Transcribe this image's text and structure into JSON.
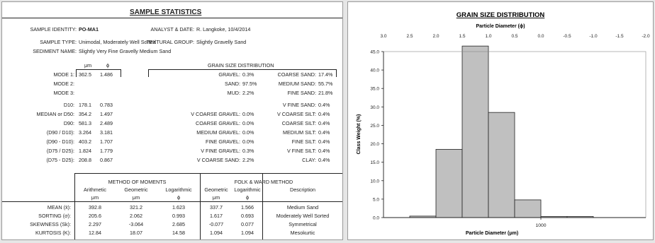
{
  "stats": {
    "title": "SAMPLE STATISTICS",
    "header": {
      "identity_label": "SAMPLE IDENTITY:",
      "identity_value": "PO-MA1",
      "analyst_label": "ANALYST & DATE:",
      "analyst_value": "R. Langkoke, 10/4/2014",
      "type_label": "SAMPLE TYPE:",
      "type_value": "Unimodal, Moderately Well Sorted",
      "group_label": "TEXTURAL GROUP:",
      "group_value": "Slightly Gravelly Sand",
      "name_label": "SEDIMENT NAME:",
      "name_value": "Slightly Very Fine Gravelly Medium Sand"
    },
    "unit_um": "μm",
    "unit_phi": "ϕ",
    "left_rows": [
      {
        "label": "MODE 1:",
        "um": "362.5",
        "phi": "1.486"
      },
      {
        "label": "MODE 2:",
        "um": "",
        "phi": ""
      },
      {
        "label": "MODE 3:",
        "um": "",
        "phi": ""
      },
      {
        "label": "D10:",
        "um": "178.1",
        "phi": "0.783"
      },
      {
        "label": "MEDIAN or D50:",
        "um": "354.2",
        "phi": "1.497"
      },
      {
        "label": "D90:",
        "um": "581.3",
        "phi": "2.489"
      },
      {
        "label": "(D90 / D10):",
        "um": "3.264",
        "phi": "3.181"
      },
      {
        "label": "(D90 - D10):",
        "um": "403.2",
        "phi": "1.707"
      },
      {
        "label": "(D75 / D25):",
        "um": "1.824",
        "phi": "1.779"
      },
      {
        "label": "(D75 - D25):",
        "um": "208.8",
        "phi": "0.867"
      }
    ],
    "distribution_title": "GRAIN SIZE DISTRIBUTION",
    "dist_rows": [
      {
        "a_label": "GRAVEL:",
        "a_value": "0.3%",
        "b_label": "COARSE SAND:",
        "b_value": "17.4%"
      },
      {
        "a_label": "SAND:",
        "a_value": "97.5%",
        "b_label": "MEDIUM SAND:",
        "b_value": "55.7%"
      },
      {
        "a_label": "MUD:",
        "a_value": "2.2%",
        "b_label": "FINE SAND:",
        "b_value": "21.8%"
      },
      {
        "a_label": "",
        "a_value": "",
        "b_label": "V FINE SAND:",
        "b_value": "0.4%"
      },
      {
        "a_label": "V COARSE GRAVEL:",
        "a_value": "0.0%",
        "b_label": "V COARSE SILT:",
        "b_value": "0.4%"
      },
      {
        "a_label": "COARSE GRAVEL:",
        "a_value": "0.0%",
        "b_label": "COARSE SILT:",
        "b_value": "0.4%"
      },
      {
        "a_label": "MEDIUM GRAVEL:",
        "a_value": "0.0%",
        "b_label": "MEDIUM SILT:",
        "b_value": "0.4%"
      },
      {
        "a_label": "FINE GRAVEL:",
        "a_value": "0.0%",
        "b_label": "FINE SILT:",
        "b_value": "0.4%"
      },
      {
        "a_label": "V FINE GRAVEL:",
        "a_value": "0.3%",
        "b_label": "V FINE SILT:",
        "b_value": "0.4%"
      },
      {
        "a_label": "V COARSE SAND:",
        "a_value": "2.2%",
        "b_label": "CLAY:",
        "b_value": "0.4%"
      }
    ],
    "moments": {
      "title": "METHOD OF MOMENTS",
      "folk_title": "FOLK & WARD METHOD",
      "col_headers": [
        "Arithmetic",
        "Geometric",
        "Logarithmic",
        "Geometric",
        "Logarithmic",
        "Description"
      ],
      "col_units": [
        "μm",
        "μm",
        "ϕ",
        "μm",
        "ϕ",
        ""
      ],
      "rows": [
        {
          "label": "MEAN (x̄):",
          "values": [
            "392.8",
            "321.2",
            "1.623",
            "337.7",
            "1.566",
            "Medium Sand"
          ]
        },
        {
          "label": "SORTING (σ):",
          "values": [
            "205.6",
            "2.062",
            "0.993",
            "1.617",
            "0.693",
            "Moderately Well Sorted"
          ]
        },
        {
          "label": "SKEWNESS (Sk):",
          "values": [
            "2.297",
            "-3.064",
            "2.685",
            "-0.077",
            "0.077",
            "Symmetrical"
          ]
        },
        {
          "label": "KURTOSIS (K):",
          "values": [
            "12.84",
            "18.07",
            "14.58",
            "1.094",
            "1.094",
            "Mesokurtic"
          ]
        }
      ]
    }
  },
  "chart_data": {
    "type": "bar",
    "title": "GRAIN SIZE DISTRIBUTION",
    "top_axis_label": "Particle Diameter (ϕ)",
    "top_ticks": [
      "3.0",
      "2.5",
      "2.0",
      "1.5",
      "1.0",
      "0.5",
      "0.0",
      "-0.5",
      "-1.0",
      "-1.5",
      "-2.0"
    ],
    "xlabel": "Particle Diameter (μm)",
    "bottom_ticks": [
      "1000"
    ],
    "ylabel": "Class Weight (%)",
    "ylim": [
      0,
      45
    ],
    "y_ticks": [
      "0.0",
      "5.0",
      "10.0",
      "15.0",
      "20.0",
      "25.0",
      "30.0",
      "35.0",
      "40.0",
      "45.0"
    ],
    "bins_phi": [
      [
        2.5,
        2.0
      ],
      [
        2.0,
        1.5
      ],
      [
        1.5,
        1.0
      ],
      [
        1.0,
        0.5
      ],
      [
        0.5,
        0.0
      ],
      [
        0.0,
        -0.5
      ],
      [
        -0.5,
        -1.0
      ]
    ],
    "values": [
      0.4,
      18.5,
      46.5,
      28.5,
      4.8,
      0.3,
      0.3
    ],
    "bar_fill": "#c0c0c0",
    "bar_stroke": "#222222"
  }
}
